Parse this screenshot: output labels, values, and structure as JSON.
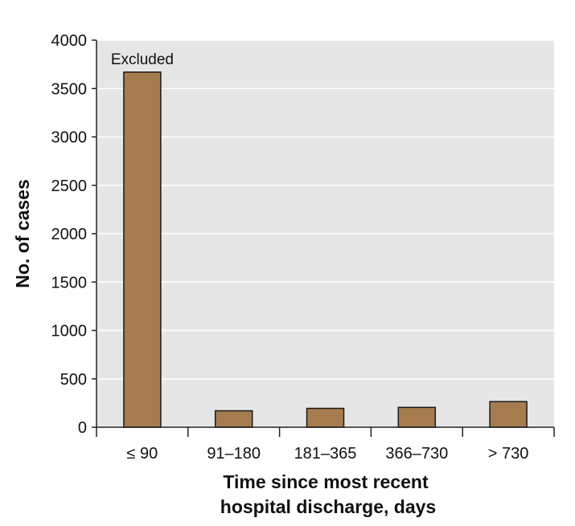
{
  "chart_data": {
    "type": "bar",
    "categories": [
      "≤ 90",
      "91–180",
      "181–365",
      "366–730",
      "> 730"
    ],
    "values": [
      3670,
      170,
      195,
      205,
      265
    ],
    "ylabel": "No. of cases",
    "xlabel_lines": [
      "Time since most recent",
      "hospital discharge, days"
    ],
    "ylim": [
      0,
      4000
    ],
    "yticks": [
      0,
      500,
      1000,
      1500,
      2000,
      2500,
      3000,
      3500,
      4000
    ],
    "grid": true,
    "annotation": {
      "category": "≤ 90",
      "text": "Excluded"
    },
    "colors": {
      "bar": "#a67c4e",
      "bar_edge": "#1a1a1a",
      "plot_bg": "#e6e6e6",
      "grid": "#ffffff"
    }
  }
}
